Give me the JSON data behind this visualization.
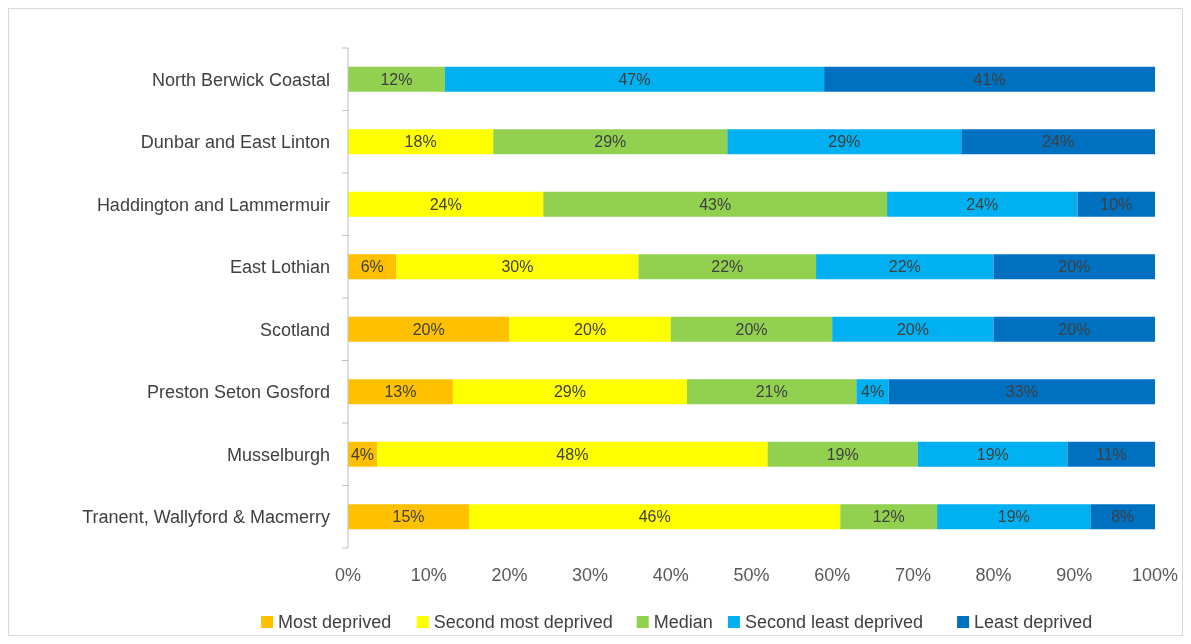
{
  "chart_data": {
    "type": "bar",
    "orientation": "horizontal",
    "stacked": true,
    "categories": [
      "North Berwick Coastal",
      "Dunbar and East Linton",
      "Haddington and Lammermuir",
      "East Lothian",
      "Scotland",
      "Preston Seton Gosford",
      "Musselburgh",
      "Tranent, Wallyford & Macmerry"
    ],
    "series": [
      {
        "name": "Most deprived",
        "color": "#ffc000",
        "values": [
          0,
          0,
          0,
          6,
          20,
          13,
          3.6,
          15
        ],
        "value_labels": [
          null,
          null,
          null,
          "6%",
          "20%",
          "13%",
          "4%",
          "15%"
        ]
      },
      {
        "name": "Second most deprived",
        "color": "#ffff00",
        "values": [
          0,
          18,
          24.2,
          30,
          20,
          29,
          48.4,
          46
        ],
        "value_labels": [
          null,
          "18%",
          "24%",
          "30%",
          "20%",
          "29%",
          "48%",
          "46%"
        ]
      },
      {
        "name": "Median",
        "color": "#92d050",
        "values": [
          12,
          29,
          42.6,
          22,
          20,
          21,
          18.6,
          12
        ],
        "value_labels": [
          "12%",
          "29%",
          "43%",
          "22%",
          "20%",
          "21%",
          "19%",
          "12%"
        ]
      },
      {
        "name": "Second least deprived",
        "color": "#00b0f0",
        "values": [
          47,
          29,
          23.6,
          22,
          20,
          4,
          18.6,
          19
        ],
        "value_labels": [
          "47%",
          "29%",
          "24%",
          "22%",
          "20%",
          "4%",
          "19%",
          "19%"
        ]
      },
      {
        "name": "Least deprived",
        "color": "#0070c0",
        "values": [
          41,
          24,
          9.6,
          20,
          20,
          33,
          10.8,
          8
        ],
        "value_labels": [
          "41%",
          "24%",
          "10%",
          "20%",
          "20%",
          "33%",
          "11%",
          "8%"
        ]
      }
    ],
    "xlim": [
      0,
      100
    ],
    "xticks": [
      {
        "value": 0,
        "label": "0%"
      },
      {
        "value": 10,
        "label": "10%"
      },
      {
        "value": 20,
        "label": "20%"
      },
      {
        "value": 30,
        "label": "30%"
      },
      {
        "value": 40,
        "label": "40%"
      },
      {
        "value": 50,
        "label": "50%"
      },
      {
        "value": 60,
        "label": "60%"
      },
      {
        "value": 70,
        "label": "70%"
      },
      {
        "value": 80,
        "label": "80%"
      },
      {
        "value": 90,
        "label": "90%"
      },
      {
        "value": 100,
        "label": "100%"
      }
    ],
    "grid": false,
    "legend": "bottom"
  }
}
